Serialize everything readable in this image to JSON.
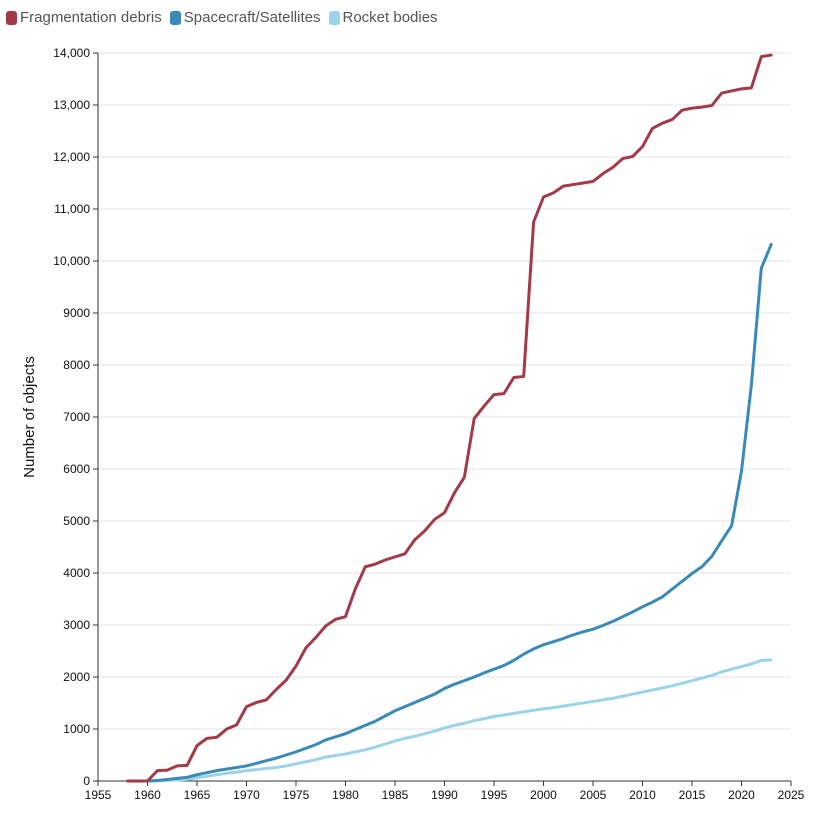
{
  "chart_data": {
    "type": "line",
    "title": "",
    "xlabel": "",
    "ylabel": "Number of objects",
    "xlim": [
      1955,
      2025
    ],
    "ylim": [
      0,
      14000
    ],
    "x_ticks": [
      1955,
      1960,
      1965,
      1970,
      1975,
      1980,
      1985,
      1990,
      1995,
      2000,
      2005,
      2010,
      2015,
      2020,
      2025
    ],
    "y_ticks": [
      0,
      1000,
      2000,
      3000,
      4000,
      5000,
      6000,
      7000,
      8000,
      9000,
      10000,
      11000,
      12000,
      13000,
      14000
    ],
    "x_tick_labels": [
      "1955",
      "1960",
      "1965",
      "1970",
      "1975",
      "1980",
      "1985",
      "1990",
      "1995",
      "2000",
      "2005",
      "2010",
      "2015",
      "2020",
      "2025"
    ],
    "y_tick_labels": [
      "0",
      "1000",
      "2000",
      "3000",
      "4000",
      "5000",
      "6000",
      "7000",
      "8000",
      "9000",
      "10,000",
      "11,000",
      "12,000",
      "13,000",
      "14,000"
    ],
    "grid": "horizontal",
    "legend_position": "top-left",
    "x": [
      1958,
      1959,
      1960,
      1961,
      1962,
      1963,
      1964,
      1965,
      1966,
      1967,
      1968,
      1969,
      1970,
      1971,
      1972,
      1973,
      1974,
      1975,
      1976,
      1977,
      1978,
      1979,
      1980,
      1981,
      1982,
      1983,
      1984,
      1985,
      1986,
      1987,
      1988,
      1989,
      1990,
      1991,
      1992,
      1993,
      1994,
      1995,
      1996,
      1997,
      1998,
      1999,
      2000,
      2001,
      2002,
      2003,
      2004,
      2005,
      2006,
      2007,
      2008,
      2009,
      2010,
      2011,
      2012,
      2013,
      2014,
      2015,
      2016,
      2017,
      2018,
      2019,
      2020,
      2021,
      2022,
      2023
    ],
    "series": [
      {
        "name": "Fragmentation debris",
        "color": "#a23a48",
        "values": [
          0,
          0,
          0,
          200,
          210,
          290,
          300,
          680,
          820,
          840,
          1000,
          1080,
          1430,
          1510,
          1560,
          1760,
          1940,
          2210,
          2560,
          2760,
          2980,
          3110,
          3160,
          3700,
          4120,
          4170,
          4250,
          4310,
          4370,
          4640,
          4810,
          5030,
          5160,
          5540,
          5840,
          6970,
          7210,
          7430,
          7450,
          7760,
          7780,
          10750,
          11230,
          11310,
          11440,
          11470,
          11500,
          11530,
          11680,
          11800,
          11970,
          12010,
          12200,
          12550,
          12650,
          12720,
          12900,
          12940,
          12960,
          12990,
          13230,
          13270,
          13310,
          13330,
          13930,
          13960
        ]
      },
      {
        "name": "Spacecraft/Satellites",
        "color": "#3a8ab9",
        "values": [
          0,
          0,
          0,
          10,
          30,
          50,
          70,
          120,
          160,
          200,
          230,
          260,
          290,
          340,
          390,
          440,
          500,
          560,
          630,
          700,
          790,
          850,
          910,
          990,
          1070,
          1150,
          1250,
          1350,
          1430,
          1510,
          1590,
          1670,
          1780,
          1860,
          1930,
          2000,
          2080,
          2150,
          2220,
          2320,
          2440,
          2540,
          2620,
          2680,
          2740,
          2810,
          2870,
          2920,
          2990,
          3070,
          3160,
          3250,
          3350,
          3440,
          3540,
          3690,
          3840,
          3990,
          4120,
          4320,
          4620,
          4910,
          5960,
          7620,
          9860,
          10320
        ]
      },
      {
        "name": "Rocket bodies",
        "color": "#9bd3e8",
        "values": [
          0,
          0,
          0,
          5,
          10,
          20,
          30,
          60,
          90,
          120,
          150,
          170,
          200,
          220,
          240,
          260,
          290,
          330,
          370,
          410,
          460,
          490,
          520,
          560,
          600,
          650,
          710,
          770,
          820,
          860,
          910,
          960,
          1020,
          1070,
          1110,
          1160,
          1200,
          1240,
          1270,
          1300,
          1330,
          1360,
          1390,
          1410,
          1440,
          1470,
          1500,
          1530,
          1560,
          1590,
          1630,
          1670,
          1710,
          1750,
          1790,
          1830,
          1880,
          1930,
          1980,
          2030,
          2100,
          2150,
          2200,
          2250,
          2320,
          2330
        ]
      }
    ]
  }
}
